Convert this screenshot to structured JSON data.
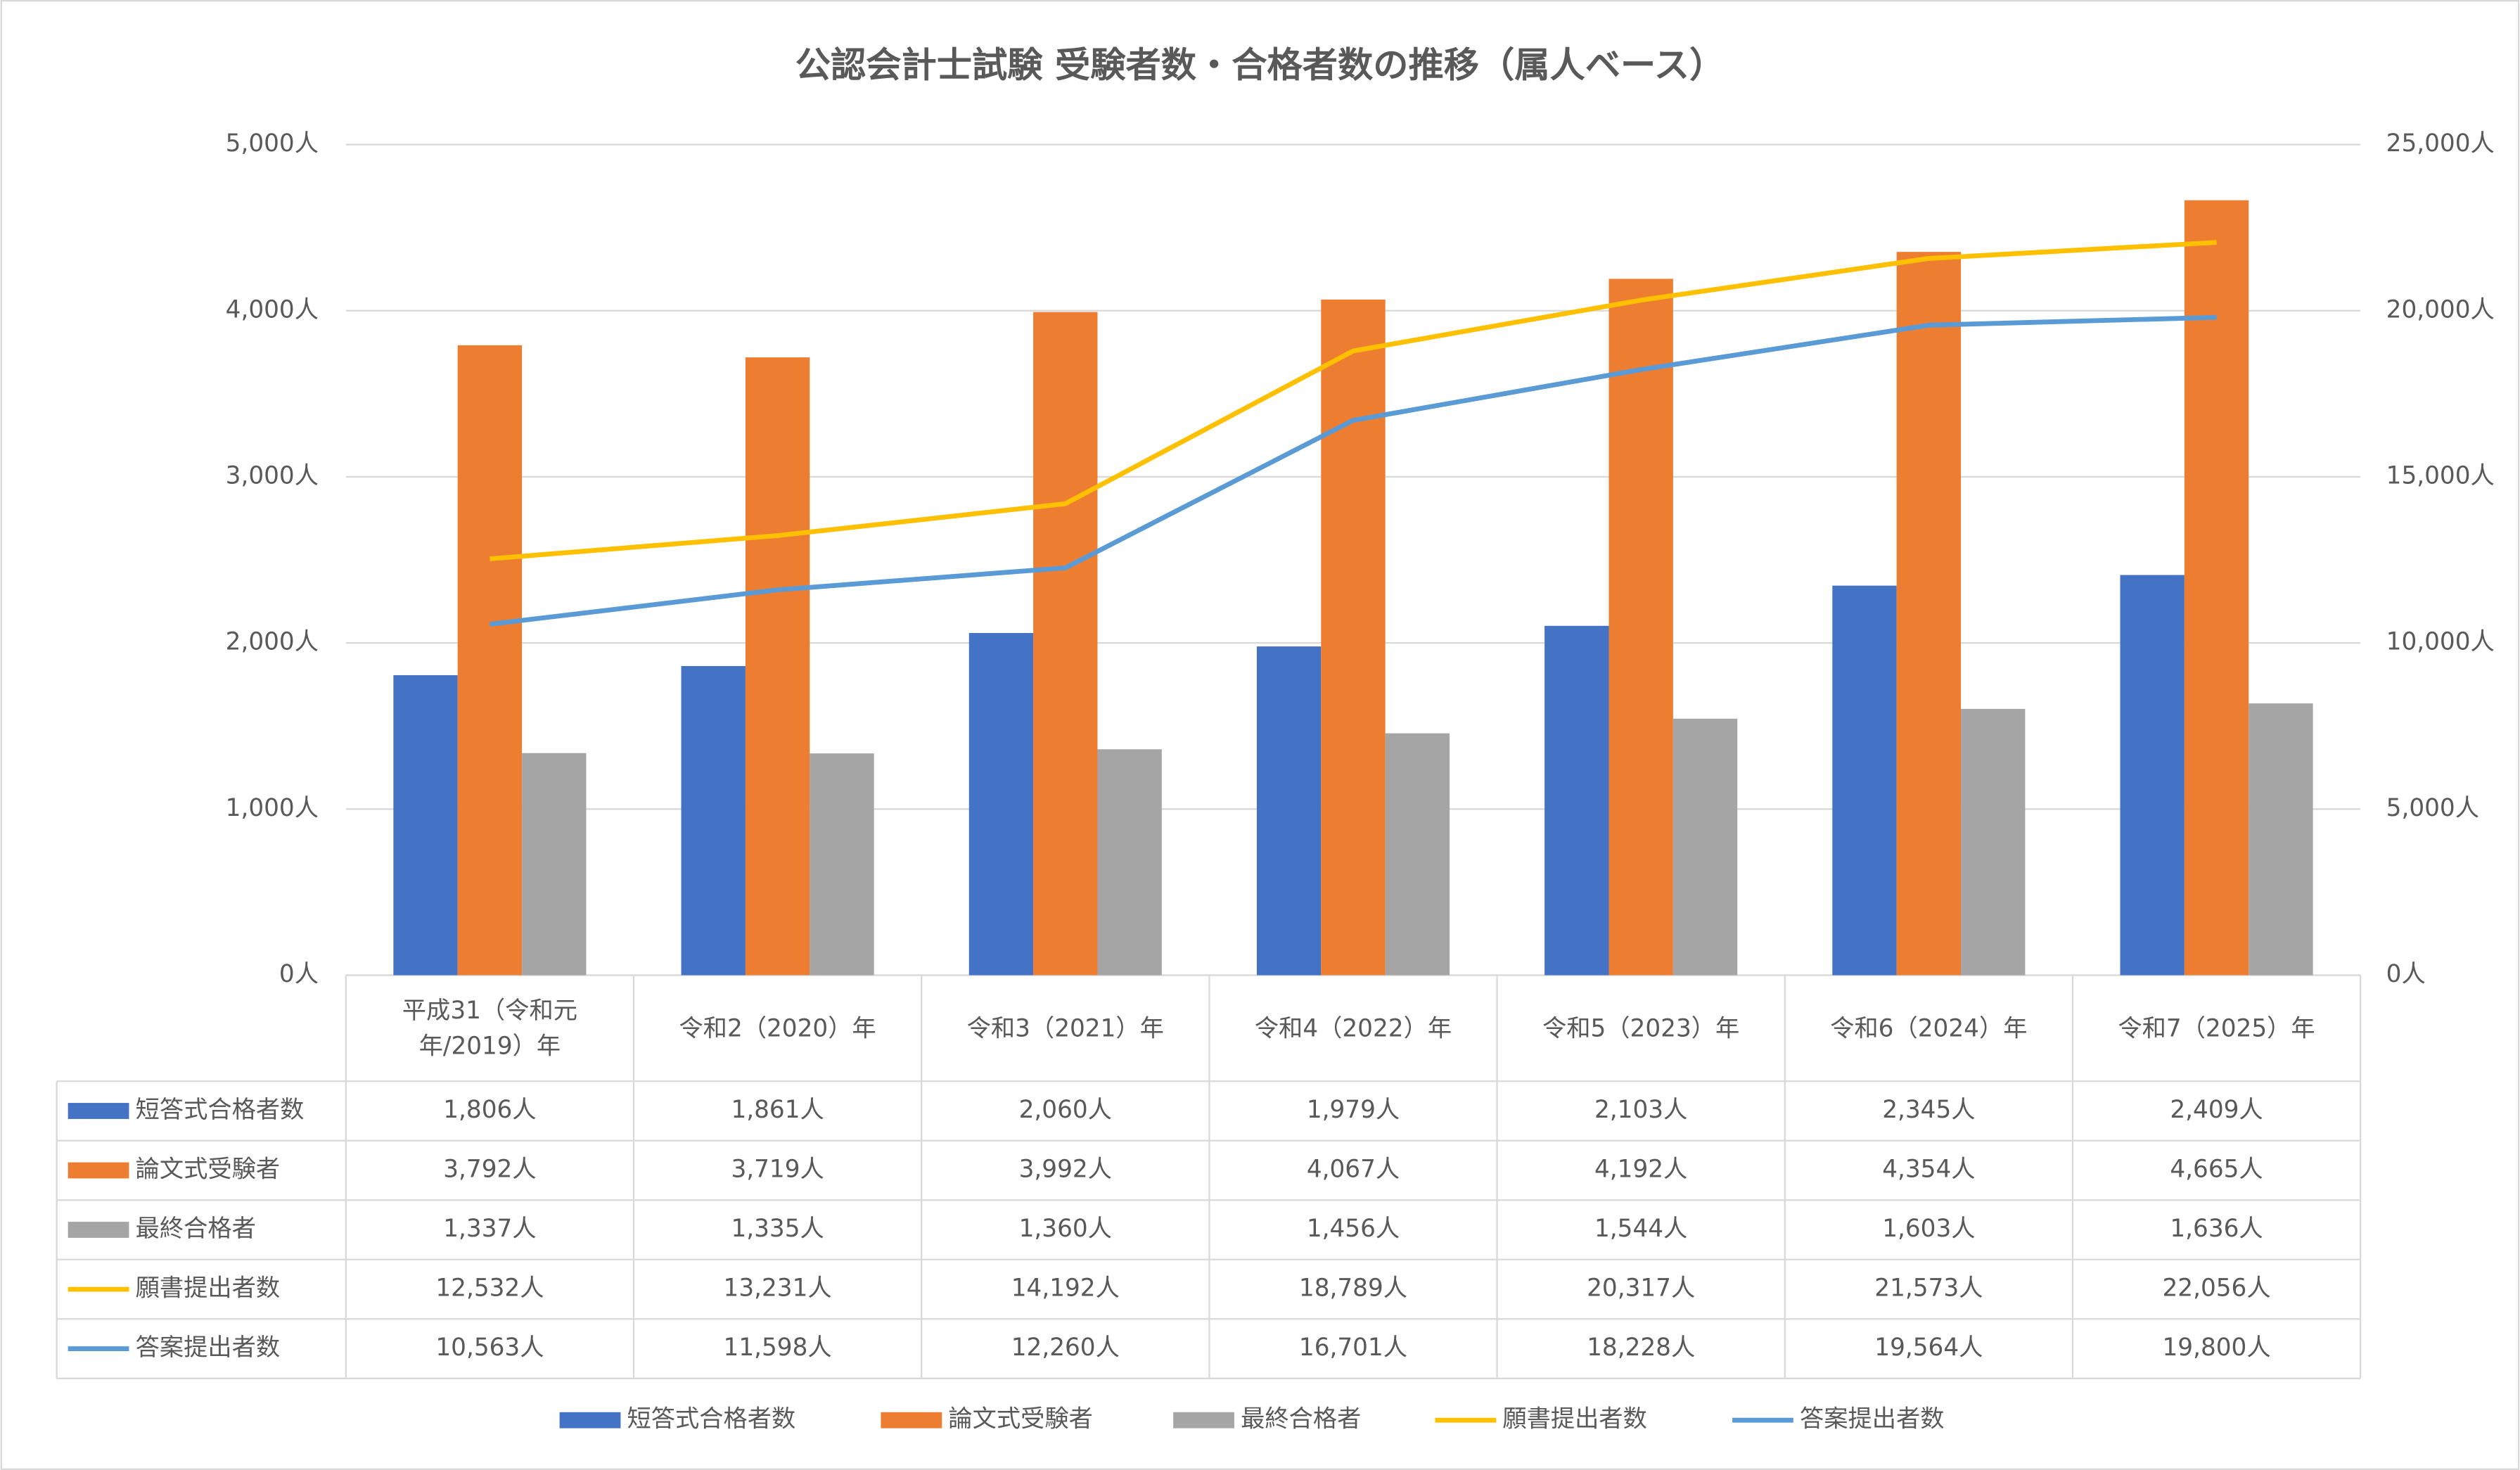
{
  "chart_data": {
    "type": "bar",
    "title": "公認会計士試験 受験者数・合格者数の推移（属人ベース）",
    "categories": [
      "平成31（令和元年/2019）年",
      "令和2（2020）年",
      "令和3（2021）年",
      "令和4（2022）年",
      "令和5（2023）年",
      "令和6（2024）年",
      "令和7（2025）年"
    ],
    "series": [
      {
        "name": "短答式合格者数",
        "color": "#4472c4",
        "type": "bar",
        "values": [
          1806,
          1861,
          2060,
          1979,
          2103,
          2345,
          2409
        ],
        "value_labels": [
          "1,806人",
          "1,861人",
          "2,060人",
          "1,979人",
          "2,103人",
          "2,345人",
          "2,409人"
        ]
      },
      {
        "name": "論文式受験者",
        "color": "#ed7d31",
        "type": "bar",
        "values": [
          3792,
          3719,
          3992,
          4067,
          4192,
          4354,
          4665
        ],
        "value_labels": [
          "3,792人",
          "3,719人",
          "3,992人",
          "4,067人",
          "4,192人",
          "4,354人",
          "4,665人"
        ]
      },
      {
        "name": "最終合格者",
        "color": "#a5a5a5",
        "type": "bar",
        "values": [
          1337,
          1335,
          1360,
          1456,
          1544,
          1603,
          1636
        ],
        "value_labels": [
          "1,337人",
          "1,335人",
          "1,360人",
          "1,456人",
          "1,544人",
          "1,603人",
          "1,636人"
        ]
      },
      {
        "name": "願書提出者数",
        "color": "#ffc000",
        "type": "line",
        "axis": "y2",
        "values": [
          12532,
          13231,
          14192,
          18789,
          20317,
          21573,
          22056
        ],
        "value_labels": [
          "12,532人",
          "13,231人",
          "14,192人",
          "18,789人",
          "20,317人",
          "21,573人",
          "22,056人"
        ]
      },
      {
        "name": "答案提出者数",
        "color": "#5b9bd5",
        "type": "line",
        "axis": "y2",
        "values": [
          10563,
          11598,
          12260,
          16701,
          18228,
          19564,
          19800
        ],
        "value_labels": [
          "10,563人",
          "11,598人",
          "12,260人",
          "16,701人",
          "18,228人",
          "19,564人",
          "19,800人"
        ]
      }
    ],
    "ylim": [
      0,
      5000
    ],
    "yticks": [
      {
        "value": 0,
        "label": "0人"
      },
      {
        "value": 1000,
        "label": "1,000人"
      },
      {
        "value": 2000,
        "label": "2,000人"
      },
      {
        "value": 3000,
        "label": "3,000人"
      },
      {
        "value": 4000,
        "label": "4,000人"
      },
      {
        "value": 5000,
        "label": "5,000人"
      }
    ],
    "y2lim": [
      0,
      25000
    ],
    "y2ticks": [
      {
        "value": 0,
        "label": "0人"
      },
      {
        "value": 5000,
        "label": "5,000人"
      },
      {
        "value": 10000,
        "label": "10,000人"
      },
      {
        "value": 15000,
        "label": "15,000人"
      },
      {
        "value": 20000,
        "label": "20,000人"
      },
      {
        "value": 25000,
        "label": "25,000人"
      }
    ],
    "grid": true,
    "legend": "bottom"
  }
}
